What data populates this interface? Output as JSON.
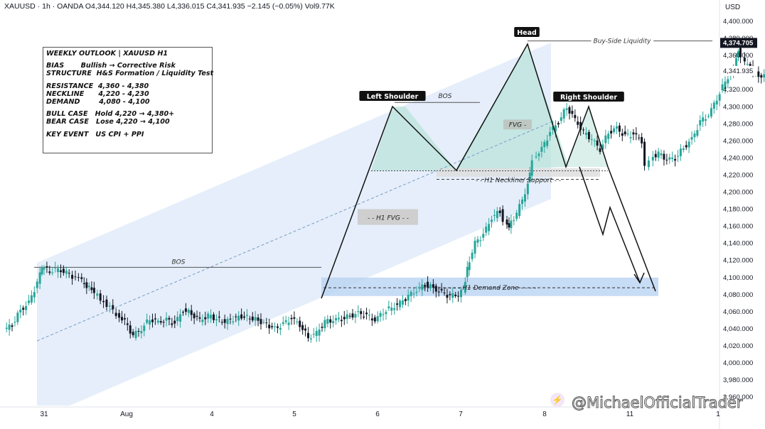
{
  "header": {
    "symbol": "XAUUSD",
    "interval": "1h",
    "exchange": "OANDA",
    "open": "O4,344.120",
    "high": "H4,345.380",
    "low": "L4,336.015",
    "close": "C4,341.935",
    "change": "−2.145 (−0.05%)",
    "volume": "Vol9.77K"
  },
  "currency": "USD",
  "outlook": {
    "title": "WEEKLY OUTLOOK | XAUUSD H1",
    "bias_key": "BIAS",
    "bias_value": "Bullish → Corrective Risk",
    "structure_key": "STRUCTURE",
    "structure_value": "H&S Formation / Liquidity Test",
    "resistance_key": "RESISTANCE",
    "resistance_value": "4,360 - 4,380",
    "neckline_key": "NECKLINE",
    "neckline_value": "4,220 - 4,230",
    "demand_key": "DEMAND",
    "demand_value": "4,080 - 4,100",
    "bull_key": "BULL CASE",
    "bull_value": "Hold 4,220 → 4,380+",
    "bear_key": "BEAR CASE",
    "bear_value": "Lose 4,220 → 4,100",
    "event_key": "KEY EVENT",
    "event_value": "US CPI + PPI"
  },
  "chart_data": {
    "type": "candlestick",
    "y_axis": {
      "ticks": [
        4400,
        4380,
        4360,
        4340,
        4320,
        4300,
        4280,
        4260,
        4240,
        4220,
        4200,
        4180,
        4160,
        4140,
        4120,
        4100,
        4080,
        4060,
        4040,
        4020,
        4000,
        3980,
        3960
      ],
      "tick_labels": [
        "4,400.000",
        "4,380.000",
        "4,360.000",
        "4,340.000",
        "4,320.000",
        "4,300.000",
        "4,280.000",
        "4,260.000",
        "4,240.000",
        "4,220.000",
        "4,200.000",
        "4,180.000",
        "4,160.000",
        "4,140.000",
        "4,120.000",
        "4,100.000",
        "4,080.000",
        "4,060.000",
        "4,040.000",
        "4,020.000",
        "4,000.000",
        "3,980.000",
        "3,960.000"
      ],
      "range": [
        3950,
        4410
      ],
      "last_price_label": "4,374.705",
      "current_price_label": "4,341.935",
      "current_price": 4341.935,
      "last_price": 4374.705
    },
    "x_axis": {
      "ticks": [
        31,
        33.8,
        35,
        36,
        37,
        38,
        39,
        40,
        41,
        42
      ],
      "tick_labels": [
        "31",
        "Aug",
        "4",
        "5",
        "6",
        "7",
        "8",
        "11",
        "1",
        ""
      ],
      "range": [
        30.6,
        42.2
      ]
    },
    "candles_note": "approximate hourly OHLC, x in day index (31 = Jul 31, 33 = Aug 3 gap shown as Aug tick)",
    "price_path": [
      [
        30.55,
        4038
      ],
      [
        30.65,
        4045
      ],
      [
        30.75,
        4062
      ],
      [
        30.85,
        4070
      ],
      [
        30.95,
        4094
      ],
      [
        31.0,
        4112
      ],
      [
        31.1,
        4108
      ],
      [
        31.2,
        4110
      ],
      [
        31.3,
        4105
      ],
      [
        31.45,
        4098
      ],
      [
        31.6,
        4085
      ],
      [
        31.75,
        4072
      ],
      [
        31.9,
        4058
      ],
      [
        32.0,
        4048
      ],
      [
        32.1,
        4032
      ],
      [
        32.2,
        4040
      ],
      [
        32.3,
        4052
      ],
      [
        32.4,
        4048
      ],
      [
        32.5,
        4050
      ],
      [
        32.6,
        4046
      ],
      [
        32.7,
        4062
      ],
      [
        32.8,
        4058
      ],
      [
        32.9,
        4050
      ],
      [
        33.0,
        4055
      ],
      [
        33.2,
        4048
      ],
      [
        33.4,
        4055
      ],
      [
        33.6,
        4050
      ],
      [
        33.8,
        4040
      ],
      [
        33.9,
        4045
      ],
      [
        34.0,
        4052
      ],
      [
        34.1,
        4045
      ],
      [
        34.2,
        4030
      ],
      [
        34.3,
        4035
      ],
      [
        34.4,
        4048
      ],
      [
        34.5,
        4050
      ],
      [
        34.6,
        4052
      ],
      [
        34.7,
        4055
      ],
      [
        34.8,
        4058
      ],
      [
        34.9,
        4055
      ],
      [
        35.0,
        4050
      ],
      [
        35.1,
        4060
      ],
      [
        35.2,
        4065
      ],
      [
        35.3,
        4070
      ],
      [
        35.4,
        4078
      ],
      [
        35.5,
        4085
      ],
      [
        35.6,
        4092
      ],
      [
        35.7,
        4088
      ],
      [
        35.8,
        4082
      ],
      [
        35.9,
        4078
      ],
      [
        36.0,
        4080
      ],
      [
        36.05,
        4085
      ],
      [
        36.1,
        4110
      ],
      [
        36.2,
        4140
      ],
      [
        36.3,
        4150
      ],
      [
        36.4,
        4170
      ],
      [
        36.5,
        4178
      ],
      [
        36.55,
        4168
      ],
      [
        36.6,
        4160
      ],
      [
        36.7,
        4175
      ],
      [
        36.8,
        4200
      ],
      [
        36.85,
        4220
      ],
      [
        36.9,
        4240
      ],
      [
        37.0,
        4250
      ],
      [
        37.1,
        4270
      ],
      [
        37.2,
        4282
      ],
      [
        37.3,
        4300
      ],
      [
        37.4,
        4285
      ],
      [
        37.5,
        4270
      ],
      [
        37.6,
        4262
      ],
      [
        37.7,
        4250
      ],
      [
        37.8,
        4270
      ],
      [
        37.9,
        4275
      ],
      [
        38.0,
        4265
      ],
      [
        38.1,
        4268
      ],
      [
        38.2,
        4260
      ],
      [
        38.25,
        4232
      ],
      [
        38.3,
        4240
      ],
      [
        38.4,
        4245
      ],
      [
        38.5,
        4238
      ],
      [
        38.6,
        4240
      ],
      [
        38.7,
        4252
      ],
      [
        38.8,
        4262
      ],
      [
        38.9,
        4282
      ],
      [
        39.0,
        4290
      ],
      [
        39.1,
        4310
      ],
      [
        39.2,
        4330
      ],
      [
        39.3,
        4345
      ],
      [
        39.35,
        4368
      ],
      [
        39.4,
        4355
      ],
      [
        39.5,
        4345
      ],
      [
        39.6,
        4335
      ],
      [
        39.7,
        4340
      ],
      [
        39.8,
        4342
      ]
    ],
    "annotations": [
      {
        "text": "Head"
      },
      {
        "text": "Left Shoulder"
      },
      {
        "text": "Right Shoulder"
      },
      {
        "text": "BOS"
      },
      {
        "text": "BOS"
      },
      {
        "text": "FVG -"
      },
      {
        "text": "- - H1 FVG - -"
      },
      {
        "text": "- - H1 Neckline/ Support - -"
      },
      {
        "text": "- - - - H1 Demand Zone - - - -"
      },
      {
        "text": "Buy-Side Liquidity"
      }
    ],
    "zones": {
      "h1_demand": [
        4080,
        4100
      ],
      "neckline": [
        4215,
        4230
      ],
      "head": 4374.705,
      "shoulders": 4300
    },
    "grid": false,
    "legend": "none"
  },
  "watermark": {
    "text": "@MichaelOfficialTrader",
    "icon": "lightning-icon"
  },
  "colors": {
    "bull": "#26a69a",
    "bear": "#131722",
    "channel": "#cfe0f5",
    "pattern": "#b8e2d8",
    "demand": "#b9d3f2"
  }
}
